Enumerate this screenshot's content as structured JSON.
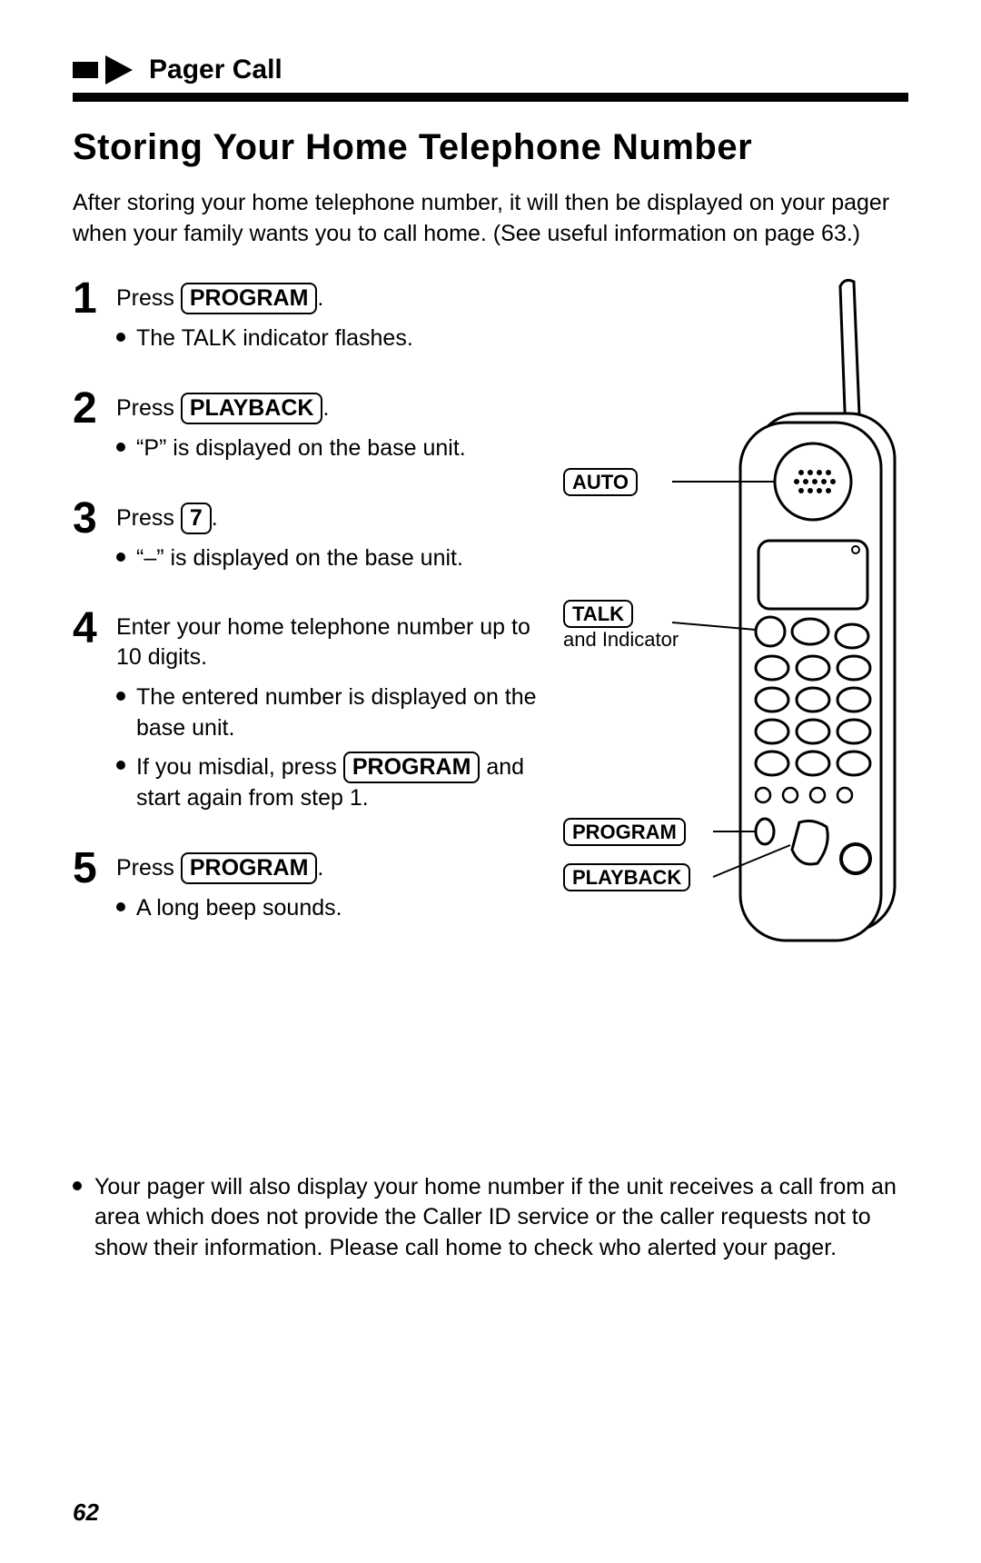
{
  "section_label": "Pager Call",
  "title": "Storing Your Home Telephone Number",
  "intro": "After storing your home telephone number, it will then be displayed on your pager when your family wants you to call home. (See useful information on page 63.)",
  "steps": [
    {
      "num": "1",
      "instr_pre": "Press ",
      "key": "PROGRAM",
      "instr_post": ".",
      "bullets": [
        "The TALK indicator flashes."
      ]
    },
    {
      "num": "2",
      "instr_pre": "Press ",
      "key": "PLAYBACK",
      "instr_post": ".",
      "bullets": [
        "“P” is displayed on the base unit."
      ]
    },
    {
      "num": "3",
      "instr_pre": "Press ",
      "key": "7",
      "instr_post": ".",
      "bullets": [
        "“–” is displayed on the base unit."
      ]
    },
    {
      "num": "4",
      "instr_plain": "Enter your home telephone number up to 10 digits.",
      "bullets": [
        "The entered number is displayed on the base unit.",
        "If you misdial, press |PROGRAM| and start again from step 1."
      ]
    },
    {
      "num": "5",
      "instr_pre": "Press ",
      "key": "PROGRAM",
      "instr_post": ".",
      "bullets": [
        "A long beep sounds."
      ]
    }
  ],
  "diagram_labels": {
    "auto": "AUTO",
    "talk": "TALK",
    "talk_sub": "and Indicator",
    "program": "PROGRAM",
    "playback": "PLAYBACK"
  },
  "footer_note": "Your pager will also display your home number if the unit receives a call from an area which does not provide the Caller ID service or the caller requests not to show their information. Please call home to check who alerted your pager.",
  "page_number": "62"
}
